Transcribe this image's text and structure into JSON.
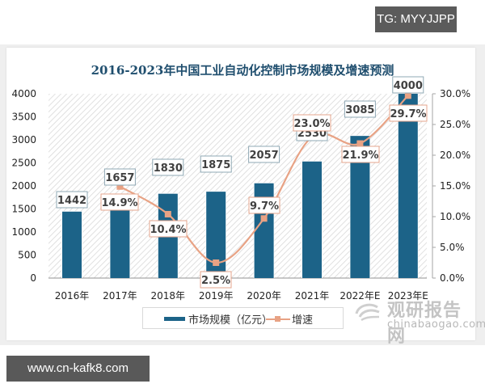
{
  "overlay": {
    "tg_label": "TG: MYYJJPP",
    "url_label": "www.cn-kafk8.com"
  },
  "chart_data": {
    "type": "bar",
    "title": "2016-2023年中国工业自动化控制市场规模及增速预测",
    "categories": [
      "2016年",
      "2017年",
      "2018年",
      "2019年",
      "2020年",
      "2021年",
      "2022年E",
      "2023年E"
    ],
    "series": [
      {
        "name": "市场规模（亿元）",
        "type": "bar",
        "axis": "left",
        "color": "#1c6388",
        "values": [
          1442,
          1657,
          1830,
          1875,
          2057,
          2530,
          3085,
          4000
        ],
        "labels": [
          "1442",
          "1657",
          "1830",
          "1875",
          "2057",
          "2530",
          "3085",
          "4000"
        ]
      },
      {
        "name": "增速",
        "type": "line",
        "axis": "right",
        "color": "#e8a284",
        "values": [
          null,
          14.9,
          10.4,
          2.5,
          9.7,
          23.0,
          21.9,
          29.7
        ],
        "labels": [
          "",
          "14.9%",
          "10.4%",
          "2.5%",
          "9.7%",
          "23.0%",
          "21.9%",
          "29.7%"
        ]
      }
    ],
    "xlabel": "",
    "ylabel": "",
    "ylim": [
      0,
      4000
    ],
    "y_ticks": [
      "0",
      "500",
      "1000",
      "1500",
      "2000",
      "2500",
      "3000",
      "3500",
      "4000"
    ],
    "y2lim": [
      0,
      30
    ],
    "y2_ticks": [
      "0.0%",
      "5.0%",
      "10.0%",
      "15.0%",
      "20.0%",
      "25.0%",
      "30.0%"
    ],
    "grid": false,
    "background": "diagonal hatch",
    "legend_position": "bottom"
  },
  "legend": {
    "bar_label": "市场规模（亿元）",
    "line_label": "增速"
  },
  "watermark": {
    "cn": "观研报告网",
    "en": "chinabaogao.com"
  }
}
